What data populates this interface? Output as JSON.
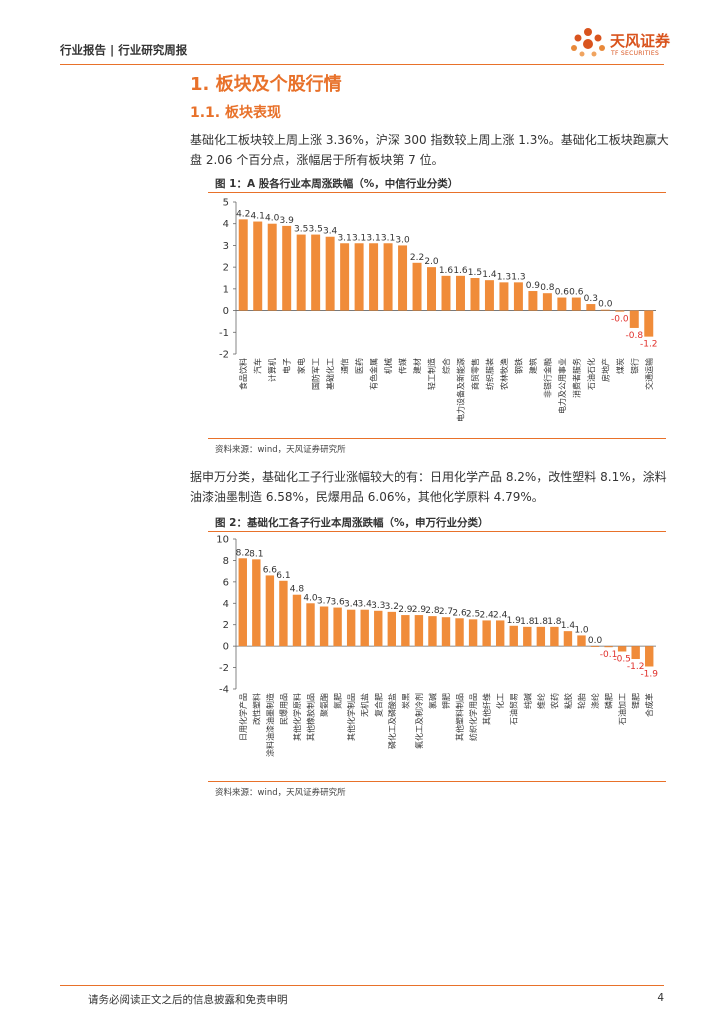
{
  "header": {
    "breadcrumb": "行业报告 | 行业研究周报",
    "logo_name": "天风证券",
    "logo_sub": "TF SECURITIES"
  },
  "section": {
    "title": "1. 板块及个股行情",
    "subtitle": "1.1. 板块表现"
  },
  "paragraphs": [
    "基础化工板块较上周上涨 3.36%，沪深 300 指数较上周上涨 1.3%。基础化工板块跑赢大盘 2.06 个百分点，涨幅居于所有板块第 7 位。",
    "据申万分类，基础化工子行业涨幅较大的有：日用化学产品 8.2%，改性塑料 8.1%，涂料油漆油墨制造 6.58%，民爆用品 6.06%，其他化学原料 4.79%。"
  ],
  "colors": {
    "accent": "#e8712a",
    "bar": "#f08c3a",
    "negative_label": "#e0302b"
  },
  "chart_data": [
    {
      "type": "bar",
      "title": "图 1：A 股各行业本周涨跌幅（%，中信行业分类）",
      "source": "资料来源：wind，天风证券研究所",
      "categories": [
        "食品饮料",
        "汽车",
        "计算机",
        "电子",
        "家电",
        "国防军工",
        "基础化工",
        "通信",
        "医药",
        "有色金属",
        "机械",
        "传媒",
        "建材",
        "轻工制造",
        "综合",
        "电力设备及新能源",
        "商贸零售",
        "纺织服装",
        "农林牧渔",
        "钢铁",
        "建筑",
        "非银行金融",
        "电力及公用事业",
        "消费者服务",
        "石油石化",
        "房地产",
        "煤炭",
        "银行",
        "交通运输"
      ],
      "values": [
        4.2,
        4.1,
        4.0,
        3.9,
        3.5,
        3.5,
        3.4,
        3.1,
        3.1,
        3.1,
        3.1,
        3.0,
        2.2,
        2.0,
        1.6,
        1.6,
        1.5,
        1.4,
        1.3,
        1.3,
        0.9,
        0.8,
        0.6,
        0.6,
        0.3,
        0.0,
        -0.0,
        -0.8,
        -1.2
      ],
      "value_labels": [
        "4.2",
        "4.1",
        "4.0",
        "3.9",
        "3.5",
        "3.5",
        "3.4",
        "3.1",
        "3.1",
        "3.1",
        "3.1",
        "3.0",
        "2.2",
        "2.0",
        "1.6",
        "1.6",
        "1.5",
        "1.4",
        "1.3",
        "1.3",
        "0.9",
        "0.8",
        "0.6",
        "0.6",
        "0.3",
        "0.0",
        "-0.0",
        "-0.8",
        "-1.2"
      ],
      "bar_heights": [
        4.2,
        4.1,
        4.0,
        3.9,
        3.5,
        3.5,
        3.4,
        3.1,
        3.1,
        3.1,
        3.1,
        3.0,
        2.2,
        2.0,
        1.6,
        1.6,
        1.5,
        1.4,
        1.3,
        1.3,
        0.9,
        0.8,
        0.6,
        0.6,
        0.3,
        0.04,
        -0.05,
        -0.8,
        -1.2
      ],
      "yticks": [
        "-2",
        "-1",
        "0",
        "1",
        "2",
        "3",
        "4",
        "5"
      ],
      "ylim": [
        -2,
        5
      ],
      "grid": false
    },
    {
      "type": "bar",
      "title": "图 2：基础化工各子行业本周涨跌幅（%，申万行业分类）",
      "source": "资料来源：wind，天风证券研究所",
      "categories": [
        "日用化学产品",
        "改性塑料",
        "涂料油漆油墨制造",
        "民爆用品",
        "其他化学原料",
        "其他橡胶制品",
        "聚氨酯",
        "氮肥",
        "其他化学制品",
        "无机盐",
        "复合肥",
        "磷化工及磷酸盐",
        "炭黑",
        "氟化工及制冷剂",
        "氯碱",
        "钾肥",
        "其他塑料制品",
        "纺织化学用品",
        "其他纤维",
        "化工",
        "石油贸易",
        "纯碱",
        "维纶",
        "农药",
        "粘胶",
        "轮胎",
        "涤纶",
        "磷肥",
        "石油加工",
        "锂肥",
        "合成革"
      ],
      "values": [
        8.2,
        8.1,
        6.6,
        6.1,
        4.8,
        4.0,
        3.7,
        3.6,
        3.4,
        3.4,
        3.3,
        3.2,
        2.9,
        2.9,
        2.8,
        2.7,
        2.6,
        2.5,
        2.4,
        2.4,
        1.9,
        1.8,
        1.8,
        1.8,
        1.4,
        1.0,
        0.0,
        -0.1,
        -0.5,
        -1.2,
        -1.9
      ],
      "value_labels": [
        "8.2",
        "8.1",
        "6.6",
        "6.1",
        "4.8",
        "4.0",
        "3.7",
        "3.6",
        "3.4",
        "3.4",
        "3.3",
        "3.2",
        "2.9",
        "2.9",
        "2.8",
        "2.7",
        "2.6",
        "2.5",
        "2.4",
        "2.4",
        "1.9",
        "1.8",
        "1.8",
        "1.8",
        "1.4",
        "1.0",
        "0.0",
        "-0.1",
        "-0.5",
        "-1.2",
        "-1.9"
      ],
      "yticks": [
        "-4",
        "-2",
        "0",
        "2",
        "4",
        "6",
        "8",
        "10"
      ],
      "ylim": [
        -4,
        10
      ],
      "grid": false
    }
  ],
  "footer": {
    "disclaimer": "请务必阅读正文之后的信息披露和免责申明",
    "page": "4"
  }
}
